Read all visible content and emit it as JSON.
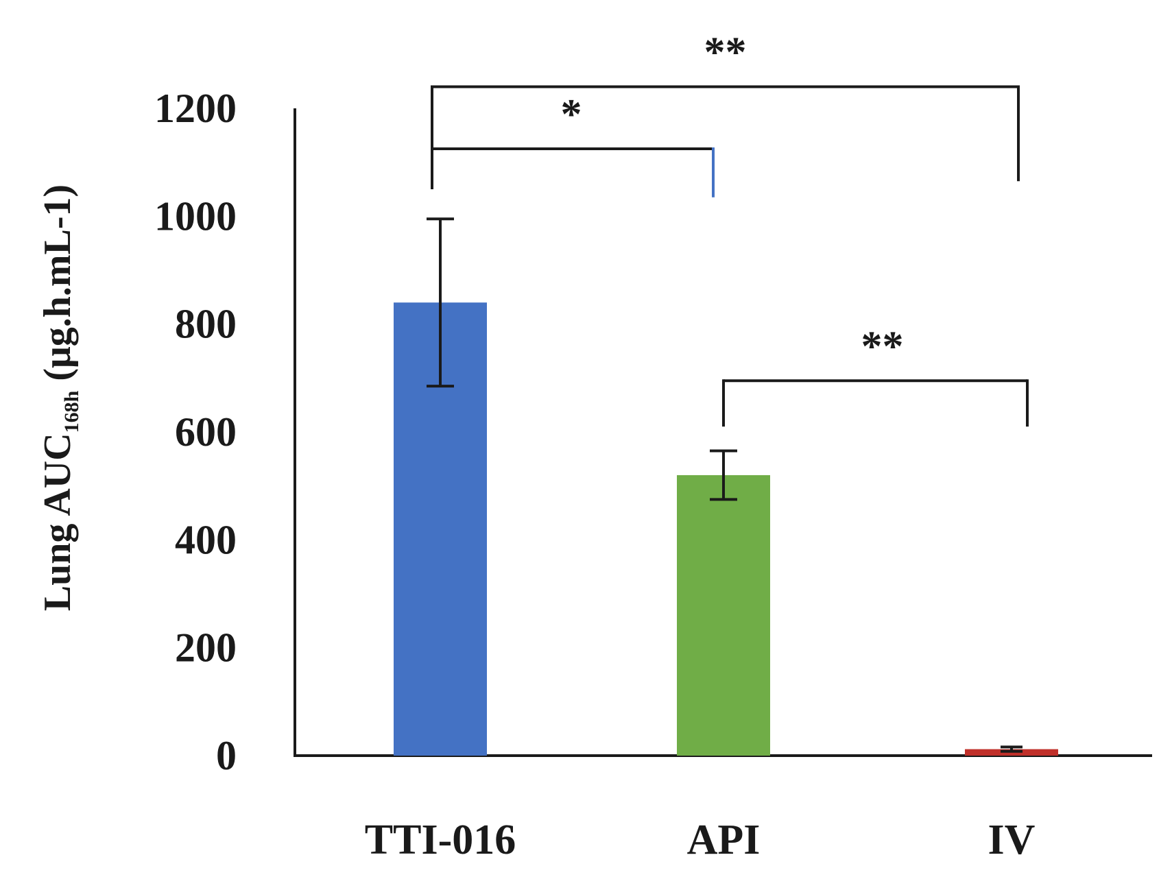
{
  "chart_data": {
    "type": "bar",
    "title": "",
    "xlabel": "",
    "ylabel": "Lung AUC168h (μg.h.mL-1)",
    "ylabel_parts": {
      "prefix": "Lung AUC",
      "subscript": "168h",
      "suffix": " (μg.h.mL-1)"
    },
    "ylim": [
      0,
      1200
    ],
    "yticks": [
      0,
      200,
      400,
      600,
      800,
      1000,
      1200
    ],
    "grid": false,
    "categories": [
      "TTI-016",
      "API",
      "IV"
    ],
    "values": [
      840,
      520,
      12
    ],
    "error": [
      155,
      45,
      4
    ],
    "colors": [
      "#4472c4",
      "#70ad47",
      "#c0302a"
    ],
    "significance": [
      {
        "from": 0,
        "to": 1,
        "label": "*",
        "bar_y": 1125,
        "left_end": 1050,
        "right_end": 1035,
        "right_color": "#4472c4"
      },
      {
        "from": 0,
        "to": 2,
        "label": "**",
        "bar_y": 1240,
        "left_end": 1050,
        "right_end": 1065,
        "right_color": "#1a1a1a"
      },
      {
        "from": 1,
        "to": 2,
        "label": "**",
        "bar_y": 695,
        "left_end": 610,
        "right_end": 610,
        "right_color": "#1a1a1a"
      }
    ]
  }
}
